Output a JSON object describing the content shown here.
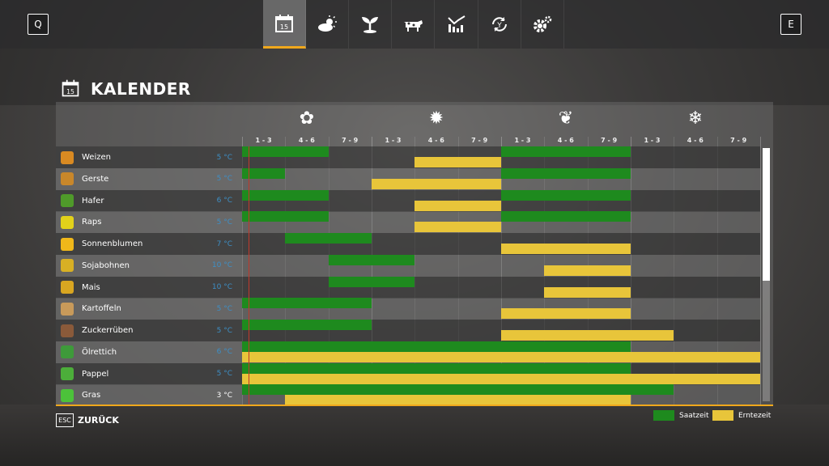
{
  "topbar": {
    "left_key": "Q",
    "right_key": "E",
    "tabs": [
      {
        "icon": "calendar-icon",
        "day": "15",
        "active": true
      },
      {
        "icon": "weather-icon"
      },
      {
        "icon": "plant-icon"
      },
      {
        "icon": "cow-icon"
      },
      {
        "icon": "stats-icon"
      },
      {
        "icon": "cycle-icon"
      },
      {
        "icon": "settings-icon"
      }
    ]
  },
  "page": {
    "title": "KALENDER",
    "calendar_day": "15"
  },
  "seasons": [
    {
      "name": "spring",
      "icon": "flower-icon",
      "glyph": "✿"
    },
    {
      "name": "summer",
      "icon": "sun-icon",
      "glyph": "✹"
    },
    {
      "name": "autumn",
      "icon": "leaf-icon",
      "glyph": "❦"
    },
    {
      "name": "winter",
      "icon": "snowflake-icon",
      "glyph": "❄"
    }
  ],
  "periods": [
    "1 - 3",
    "4 - 6",
    "7 - 9",
    "1 - 3",
    "4 - 6",
    "7 - 9",
    "1 - 3",
    "4 - 6",
    "7 - 9",
    "1 - 3",
    "4 - 6",
    "7 - 9"
  ],
  "crops": [
    {
      "name": "Weizen",
      "temp": "5 °C",
      "icon": "wheat-icon",
      "color": "#d98a22",
      "sow": [
        [
          0,
          1
        ],
        [
          6,
          8
        ]
      ],
      "harvest": [
        [
          4,
          5
        ]
      ]
    },
    {
      "name": "Gerste",
      "temp": "5 °C",
      "icon": "barley-icon",
      "color": "#c9872a",
      "sow": [
        [
          0,
          0
        ],
        [
          6,
          8
        ]
      ],
      "harvest": [
        [
          3,
          5
        ]
      ]
    },
    {
      "name": "Hafer",
      "temp": "6 °C",
      "icon": "oat-icon",
      "color": "#4f9a2a",
      "sow": [
        [
          0,
          1
        ],
        [
          6,
          8
        ]
      ],
      "harvest": [
        [
          4,
          5
        ]
      ]
    },
    {
      "name": "Raps",
      "temp": "5 °C",
      "icon": "canola-icon",
      "color": "#e2d11a",
      "sow": [
        [
          0,
          1
        ],
        [
          6,
          8
        ]
      ],
      "harvest": [
        [
          4,
          5
        ]
      ]
    },
    {
      "name": "Sonnenblumen",
      "temp": "7 °C",
      "icon": "sunflower-icon",
      "color": "#f0b81a",
      "sow": [
        [
          1,
          2
        ]
      ],
      "harvest": [
        [
          6,
          8
        ]
      ]
    },
    {
      "name": "Sojabohnen",
      "temp": "10 °C",
      "icon": "soybean-icon",
      "color": "#d8b024",
      "sow": [
        [
          2,
          3
        ]
      ],
      "harvest": [
        [
          7,
          8
        ]
      ]
    },
    {
      "name": "Mais",
      "temp": "10 °C",
      "icon": "corn-icon",
      "color": "#d9a621",
      "sow": [
        [
          2,
          3
        ]
      ],
      "harvest": [
        [
          7,
          8
        ]
      ]
    },
    {
      "name": "Kartoffeln",
      "temp": "5 °C",
      "icon": "potato-icon",
      "color": "#c89a5a",
      "sow": [
        [
          0,
          2
        ]
      ],
      "harvest": [
        [
          6,
          8
        ]
      ]
    },
    {
      "name": "Zuckerrüben",
      "temp": "5 °C",
      "icon": "sugarbeet-icon",
      "color": "#8a5a3a",
      "sow": [
        [
          0,
          2
        ]
      ],
      "harvest": [
        [
          6,
          9
        ]
      ]
    },
    {
      "name": "Ölrettich",
      "temp": "6 °C",
      "icon": "oilradish-icon",
      "color": "#3e9a3a",
      "sow": [
        [
          0,
          8
        ]
      ],
      "harvest": [
        [
          0,
          11
        ]
      ]
    },
    {
      "name": "Pappel",
      "temp": "5 °C",
      "icon": "poplar-icon",
      "color": "#4cae3a",
      "sow": [
        [
          0,
          8
        ]
      ],
      "harvest": [
        [
          0,
          11
        ]
      ]
    },
    {
      "name": "Gras",
      "temp": "3 °C",
      "icon": "grass-icon",
      "color": "#4cc23a",
      "sow": [
        [
          0,
          9
        ]
      ],
      "harvest": [
        [
          1,
          8
        ]
      ],
      "selected": true
    }
  ],
  "scroll_position": 0,
  "footer": {
    "esc_key": "ESC",
    "back_label": "ZURÜCK"
  },
  "legend": [
    {
      "label": "Saatzeit",
      "color": "#1e8a1e"
    },
    {
      "label": "Erntezeit",
      "color": "#e8c53a"
    }
  ],
  "colors": {
    "accent": "#f0a81c",
    "sow": "#1e8a1e",
    "harvest": "#e8c53a",
    "temperature": "#3d8fc6",
    "today_marker": "#c0392b"
  }
}
